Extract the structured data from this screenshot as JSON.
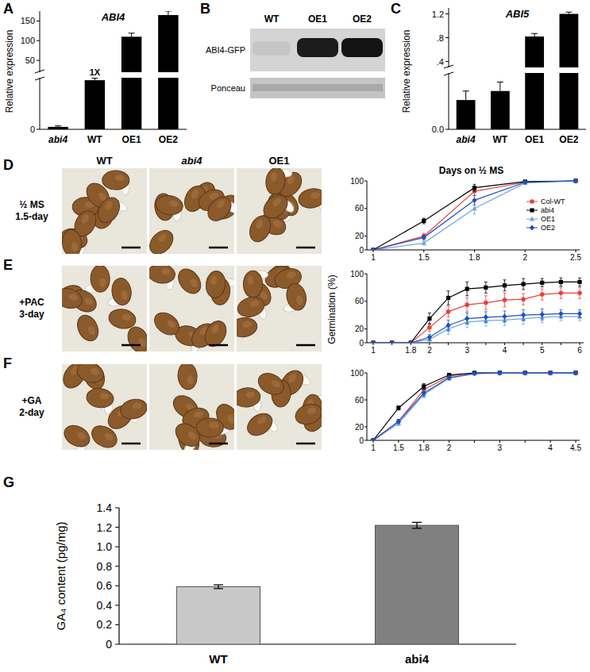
{
  "panel_labels": [
    "A",
    "B",
    "C",
    "D",
    "E",
    "F",
    "G"
  ],
  "blot": {
    "lanes": [
      "WT",
      "OE1",
      "OE2"
    ],
    "rows": [
      "ABI4-GFP",
      "Ponceau"
    ]
  },
  "photos": {
    "columns": [
      "WT",
      "abi4",
      "OE1"
    ],
    "rows": [
      [
        "½ MS",
        "1.5-day"
      ],
      [
        "+PAC",
        "3-day"
      ],
      [
        "+GA",
        "2-day"
      ]
    ]
  },
  "chart_data": [
    {
      "type": "bar",
      "title": "ABI4",
      "y_label": "Relative expression",
      "categories": [
        "abi4",
        "WT",
        "OE1",
        "OE2"
      ],
      "values": [
        0.05,
        1,
        110,
        165
      ],
      "errors": [
        0.02,
        0.04,
        9,
        10
      ],
      "color": "#000000",
      "ylim": [
        0,
        175
      ],
      "ybreak": [
        1.05,
        20
      ],
      "yticks": [
        0,
        50,
        100,
        150
      ],
      "annotations": [
        {
          "text": "1X",
          "x": "WT"
        }
      ]
    },
    {
      "type": "bar",
      "title": "ABI5",
      "y_label": "Relative expression",
      "categories": [
        "abi4",
        "WT",
        "OE1",
        "OE2"
      ],
      "values": [
        0.13,
        0.17,
        0.82,
        1.2
      ],
      "errors": [
        0.04,
        0.04,
        0.05,
        0.03
      ],
      "color": "#000000",
      "ylim": [
        0,
        1.3
      ],
      "ybreak": [
        0.25,
        0.3
      ],
      "yticks": [
        {
          "value": 0,
          "label": "0.0"
        },
        {
          "value": 0.4,
          "label": ".4"
        },
        {
          "value": 0.8,
          "label": ".8"
        },
        1.2
      ]
    },
    {
      "type": "line",
      "title": "Days on ½ MS",
      "categories": [
        "1",
        "1.5",
        "1.8",
        "2",
        "2.5"
      ],
      "ylim": [
        0,
        100
      ],
      "yticks": [
        0,
        20,
        60,
        100
      ],
      "legend": "right",
      "series": [
        {
          "name": "Col-WT",
          "color": "#e8413c",
          "marker": "circle",
          "values": [
            0,
            20,
            85,
            98,
            100
          ],
          "errors": [
            0,
            4,
            6,
            2,
            0
          ]
        },
        {
          "name": "abi4",
          "color": "#000000",
          "marker": "square",
          "values": [
            0,
            42,
            90,
            99,
            100
          ],
          "errors": [
            0,
            4,
            5,
            1,
            0
          ]
        },
        {
          "name": "OE1",
          "color": "#6fa8dc",
          "marker": "triangle",
          "values": [
            0,
            10,
            60,
            97,
            100
          ],
          "errors": [
            0,
            3,
            8,
            2,
            0
          ]
        },
        {
          "name": "OE2",
          "color": "#1f4fbf",
          "marker": "diamond",
          "values": [
            0,
            18,
            72,
            98,
            100
          ],
          "errors": [
            0,
            3,
            7,
            2,
            0
          ]
        }
      ]
    },
    {
      "type": "line",
      "y_label": "Germination (%)",
      "categories": [
        "1",
        null,
        "1.8",
        "2",
        null,
        "3",
        null,
        "4",
        null,
        "5",
        null,
        "6"
      ],
      "ylim": [
        0,
        100
      ],
      "yticks": [
        0,
        20,
        60,
        100
      ],
      "series": [
        {
          "color": "#e8413c",
          "marker": "circle",
          "values": [
            0,
            0,
            0,
            22,
            45,
            55,
            58,
            62,
            63,
            70,
            72,
            72
          ],
          "errors": [
            0,
            0,
            0,
            6,
            8,
            10,
            10,
            10,
            8,
            8,
            8,
            8
          ]
        },
        {
          "color": "#000000",
          "marker": "square",
          "values": [
            0,
            0,
            0,
            35,
            65,
            78,
            80,
            83,
            85,
            87,
            88,
            88
          ],
          "errors": [
            0,
            0,
            0,
            8,
            10,
            10,
            8,
            8,
            8,
            6,
            6,
            6
          ]
        },
        {
          "color": "#6fa8dc",
          "marker": "triangle",
          "values": [
            0,
            0,
            0,
            5,
            20,
            30,
            32,
            33,
            35,
            37,
            38,
            38
          ],
          "errors": [
            0,
            0,
            0,
            3,
            8,
            8,
            8,
            8,
            8,
            8,
            6,
            6
          ]
        },
        {
          "color": "#1f4fbf",
          "marker": "diamond",
          "values": [
            0,
            0,
            0,
            8,
            25,
            35,
            37,
            38,
            40,
            41,
            42,
            42
          ],
          "errors": [
            0,
            0,
            0,
            4,
            8,
            8,
            8,
            8,
            8,
            8,
            6,
            6
          ]
        }
      ]
    },
    {
      "type": "line",
      "categories": [
        "1",
        "1.5",
        "1.8",
        "2",
        null,
        "3",
        null,
        "4",
        "4.5"
      ],
      "ylim": [
        0,
        100
      ],
      "yticks": [
        0,
        20,
        60,
        100
      ],
      "series": [
        {
          "color": "#e8413c",
          "marker": "circle",
          "values": [
            0,
            28,
            75,
            95,
            100,
            100,
            100,
            100,
            100
          ],
          "errors": [
            0,
            3,
            5,
            3,
            0,
            0,
            0,
            0,
            0
          ]
        },
        {
          "color": "#000000",
          "marker": "square",
          "values": [
            0,
            48,
            80,
            97,
            100,
            100,
            100,
            100,
            100
          ],
          "errors": [
            0,
            3,
            4,
            2,
            0,
            0,
            0,
            0,
            0
          ]
        },
        {
          "color": "#6fa8dc",
          "marker": "triangle",
          "values": [
            0,
            25,
            68,
            92,
            99,
            100,
            100,
            100,
            100
          ],
          "errors": [
            0,
            3,
            5,
            3,
            1,
            0,
            0,
            0,
            0
          ]
        },
        {
          "color": "#1f4fbf",
          "marker": "diamond",
          "values": [
            0,
            28,
            70,
            93,
            99,
            100,
            100,
            100,
            100
          ],
          "errors": [
            0,
            3,
            5,
            3,
            1,
            0,
            0,
            0,
            0
          ]
        }
      ]
    },
    {
      "type": "bar",
      "y_label": "GA₄ content (pg/mg)",
      "categories": [
        "WT",
        "abi4"
      ],
      "values": [
        0.59,
        1.22
      ],
      "errors": [
        0.02,
        0.03
      ],
      "colors": [
        "#c8c8c8",
        "#808080"
      ],
      "ylim": [
        0,
        1.4
      ],
      "yticks": [
        0,
        0.2,
        0.4,
        0.6,
        0.8,
        {
          "value": 1,
          "label": "1.0"
        },
        1.2,
        1.4
      ]
    }
  ]
}
